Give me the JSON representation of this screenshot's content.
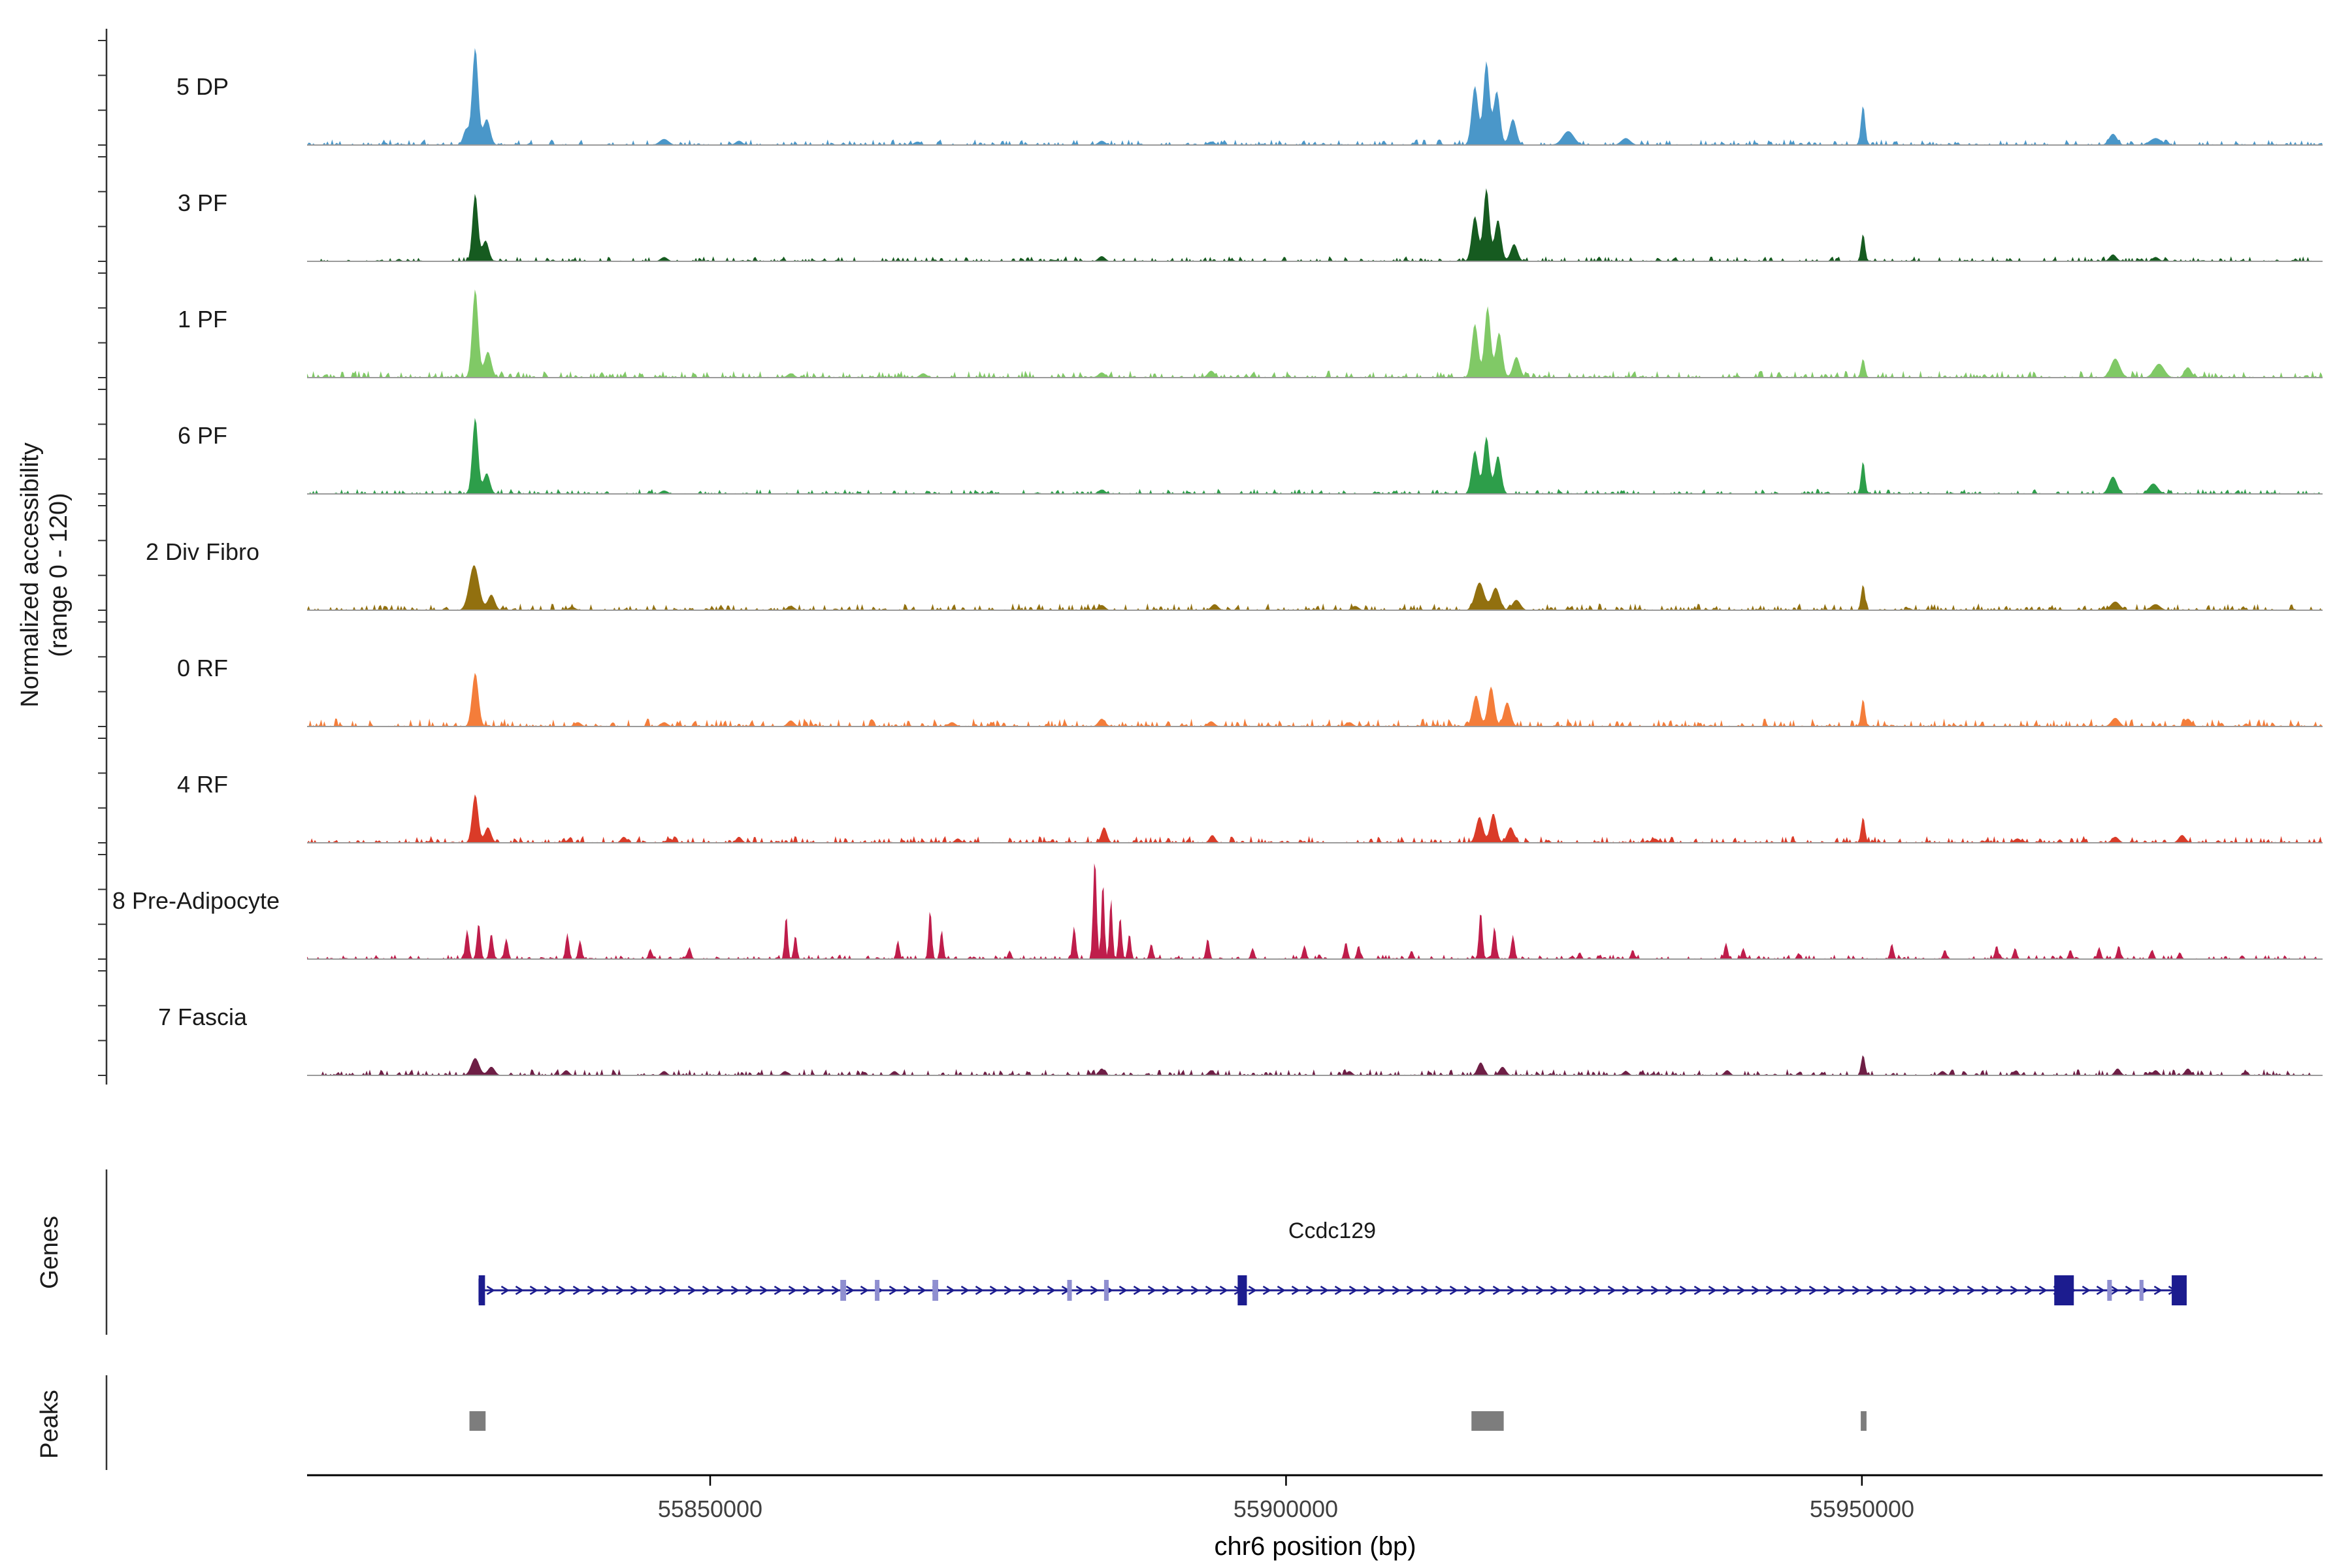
{
  "figure": {
    "y_axis_label_line1": "Normalized accessibility",
    "y_axis_label_line2": "(range 0 - 120)",
    "x_axis_title": "chr6 position (bp)",
    "genes_section_label": "Genes",
    "peaks_section_label": "Peaks"
  },
  "chart_data": {
    "type": "area",
    "subtype": "genome-coverage-tracks",
    "x_range_bp": [
      55815000,
      55990000
    ],
    "y_range_per_track": [
      0,
      120
    ],
    "x_ticks": [
      {
        "pos": 55850000,
        "label": "55850000"
      },
      {
        "pos": 55900000,
        "label": "55900000"
      },
      {
        "pos": 55950000,
        "label": "55950000"
      }
    ],
    "peaks_format": "[position_bp, height_0to120, width_sigma_bp]",
    "tracks": [
      {
        "label": "5 DP",
        "color": "#4a97c9",
        "noise": 2.5,
        "seed": 11,
        "peaks": [
          [
            55828800,
            18,
            250
          ],
          [
            55829600,
            112,
            260
          ],
          [
            55830600,
            30,
            300
          ],
          [
            55846000,
            7,
            400
          ],
          [
            55852500,
            5,
            300
          ],
          [
            55868000,
            4,
            300
          ],
          [
            55884000,
            5,
            300
          ],
          [
            55893500,
            4,
            300
          ],
          [
            55916400,
            68,
            280
          ],
          [
            55917400,
            96,
            260
          ],
          [
            55918300,
            62,
            280
          ],
          [
            55919700,
            30,
            300
          ],
          [
            55924500,
            16,
            500
          ],
          [
            55929500,
            8,
            400
          ],
          [
            55950100,
            46,
            180
          ],
          [
            55971800,
            13,
            350
          ],
          [
            55975500,
            8,
            500
          ]
        ]
      },
      {
        "label": "3 PF",
        "color": "#165b20",
        "noise": 2.2,
        "seed": 22,
        "peaks": [
          [
            55829600,
            78,
            240
          ],
          [
            55830500,
            24,
            280
          ],
          [
            55846000,
            5,
            300
          ],
          [
            55884000,
            6,
            300
          ],
          [
            55916400,
            52,
            280
          ],
          [
            55917400,
            84,
            260
          ],
          [
            55918400,
            48,
            280
          ],
          [
            55919800,
            20,
            300
          ],
          [
            55950100,
            32,
            170
          ],
          [
            55971800,
            8,
            300
          ],
          [
            55975500,
            5,
            300
          ]
        ]
      },
      {
        "label": "1 PF",
        "color": "#80c966",
        "noise": 3.0,
        "seed": 33,
        "peaks": [
          [
            55829600,
            102,
            260
          ],
          [
            55830700,
            30,
            300
          ],
          [
            55857000,
            5,
            300
          ],
          [
            55868500,
            5,
            300
          ],
          [
            55884000,
            6,
            300
          ],
          [
            55893500,
            8,
            300
          ],
          [
            55916400,
            62,
            280
          ],
          [
            55917500,
            82,
            260
          ],
          [
            55918500,
            52,
            280
          ],
          [
            55920000,
            24,
            300
          ],
          [
            55950100,
            22,
            170
          ],
          [
            55972000,
            22,
            400
          ],
          [
            55975800,
            16,
            450
          ],
          [
            55978300,
            12,
            300
          ]
        ]
      },
      {
        "label": "6 PF",
        "color": "#2d9e4a",
        "noise": 2.2,
        "seed": 44,
        "peaks": [
          [
            55829600,
            88,
            250
          ],
          [
            55830600,
            24,
            280
          ],
          [
            55846000,
            4,
            300
          ],
          [
            55884000,
            5,
            300
          ],
          [
            55916400,
            50,
            280
          ],
          [
            55917400,
            66,
            260
          ],
          [
            55918400,
            44,
            280
          ],
          [
            55950100,
            38,
            170
          ],
          [
            55971800,
            20,
            350
          ],
          [
            55975300,
            12,
            400
          ]
        ]
      },
      {
        "label": "2 Div Fibro",
        "color": "#92700f",
        "noise": 3.0,
        "seed": 55,
        "peaks": [
          [
            55829500,
            52,
            420
          ],
          [
            55831000,
            18,
            300
          ],
          [
            55838000,
            4,
            300
          ],
          [
            55857000,
            5,
            300
          ],
          [
            55884000,
            6,
            300
          ],
          [
            55893800,
            7,
            300
          ],
          [
            55906000,
            5,
            300
          ],
          [
            55916800,
            32,
            400
          ],
          [
            55918200,
            26,
            350
          ],
          [
            55920000,
            12,
            350
          ],
          [
            55950100,
            30,
            170
          ],
          [
            55972000,
            10,
            400
          ],
          [
            55975500,
            7,
            400
          ]
        ]
      },
      {
        "label": "0 RF",
        "color": "#f47d3a",
        "noise": 3.5,
        "seed": 66,
        "peaks": [
          [
            55829600,
            62,
            280
          ],
          [
            55838500,
            5,
            300
          ],
          [
            55846000,
            5,
            300
          ],
          [
            55857000,
            7,
            300
          ],
          [
            55871000,
            5,
            300
          ],
          [
            55884000,
            9,
            300
          ],
          [
            55893500,
            6,
            300
          ],
          [
            55905500,
            5,
            300
          ],
          [
            55916500,
            36,
            300
          ],
          [
            55917800,
            46,
            280
          ],
          [
            55919200,
            28,
            300
          ],
          [
            55950100,
            32,
            170
          ],
          [
            55972000,
            10,
            350
          ],
          [
            55978300,
            9,
            300
          ]
        ]
      },
      {
        "label": "4 RF",
        "color": "#da3b28",
        "noise": 3.0,
        "seed": 77,
        "peaks": [
          [
            55829600,
            56,
            260
          ],
          [
            55830700,
            18,
            280
          ],
          [
            55842500,
            7,
            250
          ],
          [
            55846500,
            5,
            250
          ],
          [
            55852500,
            7,
            250
          ],
          [
            55871500,
            5,
            250
          ],
          [
            55884200,
            18,
            250
          ],
          [
            55893600,
            9,
            250
          ],
          [
            55916800,
            30,
            300
          ],
          [
            55918000,
            34,
            280
          ],
          [
            55919500,
            18,
            300
          ],
          [
            55932000,
            5,
            300
          ],
          [
            55950100,
            30,
            170
          ],
          [
            55963500,
            5,
            300
          ],
          [
            55972000,
            7,
            300
          ],
          [
            55977800,
            9,
            300
          ]
        ]
      },
      {
        "label": "8 Pre-Adipocyte",
        "color": "#bf1d4b",
        "noise": 2.0,
        "seed": 88,
        "peaks": [
          [
            55828900,
            34,
            160
          ],
          [
            55829900,
            42,
            160
          ],
          [
            55831000,
            30,
            160
          ],
          [
            55832300,
            24,
            160
          ],
          [
            55837600,
            30,
            150
          ],
          [
            55838700,
            22,
            150
          ],
          [
            55844800,
            12,
            150
          ],
          [
            55848200,
            14,
            150
          ],
          [
            55856600,
            52,
            130
          ],
          [
            55857400,
            28,
            140
          ],
          [
            55866300,
            22,
            140
          ],
          [
            55869100,
            58,
            140
          ],
          [
            55870100,
            34,
            140
          ],
          [
            55876000,
            10,
            150
          ],
          [
            55881600,
            38,
            150
          ],
          [
            55883400,
            118,
            150
          ],
          [
            55884100,
            92,
            130
          ],
          [
            55884800,
            72,
            130
          ],
          [
            55885600,
            50,
            140
          ],
          [
            55886400,
            30,
            140
          ],
          [
            55888300,
            18,
            150
          ],
          [
            55893200,
            24,
            150
          ],
          [
            55897100,
            13,
            150
          ],
          [
            55901600,
            16,
            150
          ],
          [
            55905200,
            20,
            150
          ],
          [
            55906300,
            16,
            150
          ],
          [
            55910900,
            10,
            150
          ],
          [
            55916900,
            56,
            150
          ],
          [
            55918100,
            38,
            150
          ],
          [
            55919700,
            28,
            150
          ],
          [
            55925500,
            8,
            150
          ],
          [
            55930100,
            11,
            150
          ],
          [
            55938200,
            19,
            150
          ],
          [
            55939700,
            13,
            150
          ],
          [
            55944500,
            7,
            150
          ],
          [
            55952600,
            18,
            150
          ],
          [
            55957200,
            11,
            150
          ],
          [
            55961700,
            16,
            150
          ],
          [
            55963300,
            13,
            150
          ],
          [
            55968100,
            11,
            150
          ],
          [
            55970600,
            14,
            150
          ],
          [
            55972300,
            16,
            150
          ],
          [
            55975200,
            11,
            150
          ],
          [
            55977600,
            8,
            150
          ]
        ]
      },
      {
        "label": "7 Fascia",
        "color": "#6e1e45",
        "noise": 2.8,
        "seed": 99,
        "peaks": [
          [
            55829600,
            20,
            350
          ],
          [
            55831000,
            10,
            300
          ],
          [
            55837500,
            6,
            250
          ],
          [
            55846000,
            5,
            250
          ],
          [
            55856500,
            5,
            250
          ],
          [
            55866000,
            5,
            250
          ],
          [
            55884000,
            8,
            250
          ],
          [
            55893500,
            6,
            250
          ],
          [
            55905500,
            5,
            250
          ],
          [
            55916900,
            15,
            280
          ],
          [
            55918800,
            10,
            280
          ],
          [
            55929500,
            5,
            250
          ],
          [
            55938300,
            6,
            250
          ],
          [
            55950100,
            24,
            170
          ],
          [
            55957000,
            5,
            250
          ],
          [
            55963300,
            5,
            250
          ],
          [
            55972200,
            8,
            250
          ],
          [
            55975500,
            6,
            250
          ],
          [
            55978300,
            8,
            250
          ]
        ]
      }
    ],
    "gene": {
      "name": "Ccdc129",
      "start": 55830000,
      "end": 55978000,
      "strand": "+",
      "exons": [
        [
          55829900,
          55830450
        ],
        [
          55895800,
          55896600
        ],
        [
          55966700,
          55968400
        ],
        [
          55976900,
          55978200
        ]
      ],
      "utr_boxes": [
        [
          55861300,
          55861800
        ],
        [
          55864300,
          55864700
        ],
        [
          55869300,
          55869800
        ],
        [
          55881000,
          55881400
        ],
        [
          55884200,
          55884600
        ],
        [
          55971300,
          55971700
        ],
        [
          55974100,
          55974450
        ]
      ]
    },
    "peak_regions": [
      [
        55829100,
        55830500
      ],
      [
        55916100,
        55918900
      ],
      [
        55949900,
        55950400
      ]
    ]
  }
}
